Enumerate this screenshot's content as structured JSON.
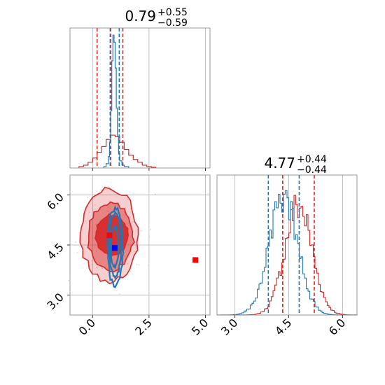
{
  "chart_data": {
    "type": "corner",
    "colors": {
      "posterior_a": "#d62728",
      "posterior_b": "#1f77b4",
      "truth_marker_a": "#ff0000",
      "truth_marker_b": "#0000ff",
      "grid": "#b0b0b0",
      "frame": "#808080"
    },
    "panels": [
      {
        "id": "marginal_param_1",
        "type": "histogram",
        "title": {
          "median": "0.79",
          "plus": "+0.55",
          "minus": "−0.59"
        },
        "xlim": [
          -1.0,
          5.2
        ],
        "xticks": [
          0.0,
          2.5,
          5.0
        ],
        "show_tick_labels": false,
        "grid": true,
        "series": [
          {
            "name": "",
            "color": "#d62728",
            "bin_edges": [
              -0.6,
              -0.4,
              -0.2,
              0.0,
              0.2,
              0.4,
              0.6,
              0.8,
              1.0,
              1.2,
              1.4,
              1.6,
              1.8,
              2.0,
              2.2,
              2.4,
              2.6,
              2.8
            ],
            "counts": [
              0.01,
              0.02,
              0.04,
              0.07,
              0.11,
              0.15,
              0.2,
              0.23,
              0.22,
              0.18,
              0.13,
              0.09,
              0.06,
              0.04,
              0.02,
              0.01,
              0.005
            ],
            "quantile_lines": [
              0.2,
              0.8,
              1.34
            ]
          },
          {
            "name": "",
            "color": "#1f77b4",
            "bin_edges": [
              0.5,
              0.6,
              0.7,
              0.75,
              0.8,
              0.85,
              0.9,
              0.95,
              1.0,
              1.05,
              1.1,
              1.15,
              1.2,
              1.3,
              1.4,
              1.6
            ],
            "counts": [
              0.01,
              0.03,
              0.08,
              0.18,
              0.4,
              0.75,
              0.93,
              0.88,
              0.7,
              0.42,
              0.22,
              0.1,
              0.05,
              0.02,
              0.01
            ],
            "quantile_lines": [
              0.78,
              1.18
            ]
          }
        ]
      },
      {
        "id": "marginal_param_2",
        "type": "histogram",
        "title": {
          "median": "4.77",
          "plus": "+0.44",
          "minus": "−0.44"
        },
        "xlim": [
          2.5,
          6.4
        ],
        "xticks": [
          3.0,
          4.5,
          6.0
        ],
        "xticklabels": [
          "3.0",
          "4.5",
          "6.0"
        ],
        "grid": true,
        "series": [
          {
            "name": "",
            "color": "#d62728",
            "quantile_lines": [
              4.33,
              5.21
            ]
          },
          {
            "name": "",
            "color": "#1f77b4",
            "quantile_lines": [
              3.93,
              4.79
            ]
          }
        ]
      },
      {
        "id": "joint_param_1_param_2",
        "type": "2d-density-contours",
        "xlim": [
          -1.0,
          5.2
        ],
        "ylim": [
          2.4,
          6.6
        ],
        "xticks": [
          0.0,
          2.5,
          5.0
        ],
        "xticklabels": [
          "0.0",
          "2.5",
          "5.0"
        ],
        "yticks": [
          3.0,
          4.5,
          6.0
        ],
        "yticklabels": [
          "3.0",
          "4.5",
          "6.0"
        ],
        "grid": true,
        "red_contours": [
          {
            "cx": 0.75,
            "cy": 4.8,
            "rx": 1.25,
            "ry": 1.4,
            "fill_opacity": 0.22
          },
          {
            "cx": 0.8,
            "cy": 4.75,
            "rx": 1.0,
            "ry": 1.0,
            "fill_opacity": 0.45
          },
          {
            "cx": 0.85,
            "cy": 4.8,
            "rx": 0.7,
            "ry": 0.6,
            "fill_opacity": 0.9
          }
        ],
        "blue_contours": [
          {
            "cx": 1.0,
            "cy": 4.45,
            "rx": 0.34,
            "ry": 1.15
          },
          {
            "cx": 1.0,
            "cy": 4.5,
            "rx": 0.26,
            "ry": 0.95
          },
          {
            "cx": 0.98,
            "cy": 4.45,
            "rx": 0.17,
            "ry": 0.6
          }
        ],
        "markers": [
          {
            "name": "red-marker-inner",
            "x": 0.75,
            "y": 4.79,
            "color": "#ff0000"
          },
          {
            "name": "blue-marker",
            "x": 0.98,
            "y": 4.41,
            "color": "#0000ff"
          },
          {
            "name": "red-marker-outer",
            "x": 4.55,
            "y": 4.05,
            "color": "#ff0000"
          }
        ]
      }
    ]
  }
}
